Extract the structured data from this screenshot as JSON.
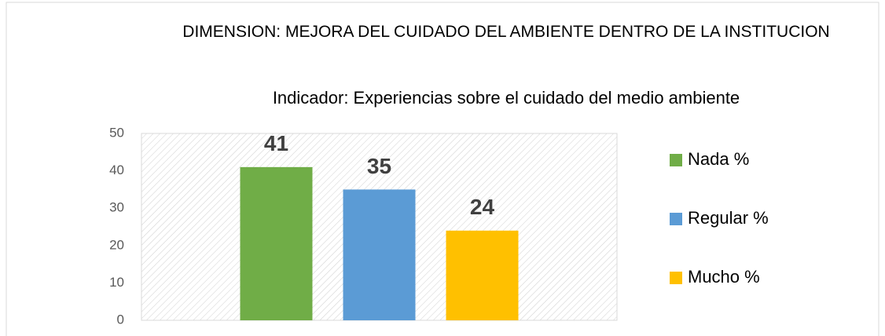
{
  "chart_data": {
    "type": "bar",
    "title": "DIMENSION: MEJORA DEL CUIDADO DEL AMBIENTE DENTRO DE LA INSTITUCION",
    "subtitle": "Indicador: Experiencias sobre el cuidado del medio ambiente",
    "categories": [
      null
    ],
    "series": [
      {
        "name": "Nada %",
        "color": "#70ad47",
        "values": [
          41
        ]
      },
      {
        "name": "Regular %",
        "color": "#5b9bd5",
        "values": [
          35
        ]
      },
      {
        "name": "Mucho %",
        "color": "#ffc000",
        "values": [
          24
        ]
      }
    ],
    "ylim": [
      0,
      50
    ],
    "yticks": [
      0,
      10,
      20,
      30,
      40,
      50
    ],
    "legend": "right"
  }
}
